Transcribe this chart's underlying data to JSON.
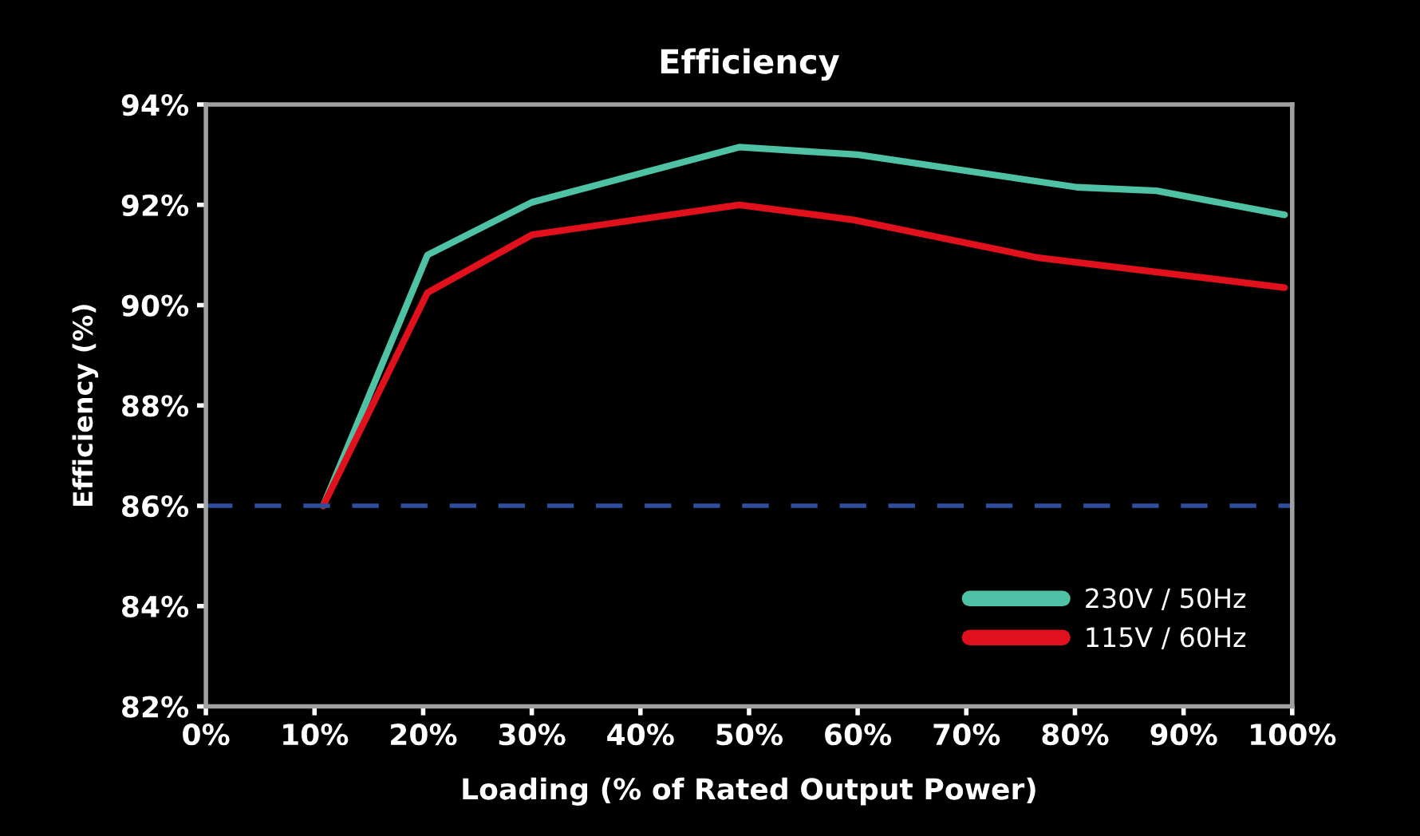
{
  "chart_data": {
    "type": "line",
    "title": "Efficiency",
    "xlabel": "Loading (% of Rated Output Power)",
    "ylabel": "Efficiency (%)",
    "series": [
      {
        "name": "230V / 50Hz",
        "color": "#4fc1a4",
        "x": [
          10.8,
          20.4,
          30,
          49.1,
          60,
          80.2,
          87.5,
          99.3
        ],
        "values": [
          86.0,
          91.0,
          92.05,
          93.15,
          93.0,
          92.35,
          92.28,
          91.8
        ]
      },
      {
        "name": "115V / 60Hz",
        "color": "#e0101c",
        "x": [
          10.8,
          20.4,
          30,
          49.1,
          59.6,
          76.5,
          99.3
        ],
        "values": [
          86.0,
          90.25,
          91.4,
          92.0,
          91.7,
          90.95,
          90.35
        ]
      }
    ],
    "xlim": [
      0,
      100
    ],
    "ylim": [
      82,
      94
    ],
    "xticks": [
      {
        "value": 0,
        "label": "0%"
      },
      {
        "value": 10,
        "label": "10%"
      },
      {
        "value": 20,
        "label": "20%"
      },
      {
        "value": 30,
        "label": "30%"
      },
      {
        "value": 40,
        "label": "40%"
      },
      {
        "value": 50,
        "label": "50%"
      },
      {
        "value": 60,
        "label": "60%"
      },
      {
        "value": 70,
        "label": "70%"
      },
      {
        "value": 80,
        "label": "80%"
      },
      {
        "value": 90,
        "label": "90%"
      },
      {
        "value": 100,
        "label": "100%"
      }
    ],
    "yticks": [
      {
        "value": 82,
        "label": "82%"
      },
      {
        "value": 84,
        "label": "84%"
      },
      {
        "value": 86,
        "label": "86%"
      },
      {
        "value": 88,
        "label": "88%"
      },
      {
        "value": 90,
        "label": "90%"
      },
      {
        "value": 92,
        "label": "92%"
      },
      {
        "value": 94,
        "label": "94%"
      }
    ],
    "ref_lines": [
      {
        "axis": "y",
        "value": 86,
        "color": "#2e4f9e",
        "line_style": "dashed"
      }
    ],
    "legend": "bottom right",
    "grid": false,
    "marker": "none",
    "line_style": "solid"
  }
}
